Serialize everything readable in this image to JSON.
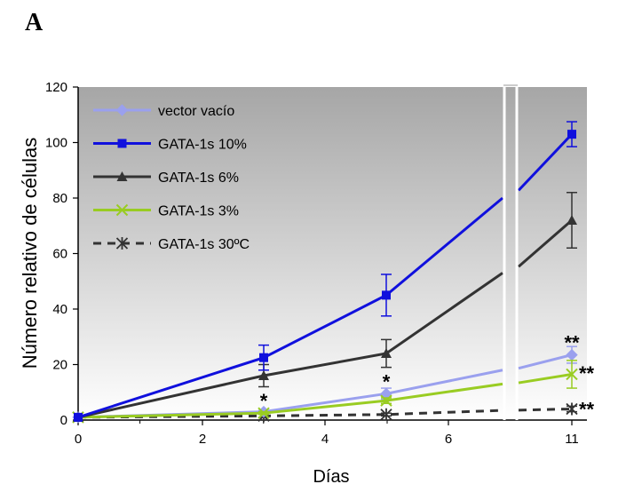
{
  "panel_letter": "A",
  "chart_data": {
    "type": "line",
    "xlabel": "Días",
    "ylabel": "Número relativo de células",
    "ylim": [
      0,
      120
    ],
    "yticks": [
      "0",
      "20",
      "40",
      "60",
      "80",
      "100",
      "120"
    ],
    "xticks": [
      "0",
      "2",
      "4",
      "6",
      "11"
    ],
    "x": [
      0,
      3,
      5,
      11
    ],
    "axis_break": "between 6 and 11",
    "legend_position": "top-left",
    "grid": false,
    "series": [
      {
        "name": "vector vacío",
        "color": "#9aa0ee",
        "marker": "diamond",
        "dash": false,
        "values": [
          1,
          3,
          9.5,
          23.5
        ],
        "errors": [
          0,
          0.5,
          2,
          3
        ],
        "pre_break": 18
      },
      {
        "name": "GATA-1s 10%",
        "color": "#1010dd",
        "marker": "square",
        "dash": false,
        "values": [
          1,
          22.5,
          45,
          103
        ],
        "errors": [
          0,
          4.5,
          7.5,
          4.5
        ],
        "pre_break": 80
      },
      {
        "name": "GATA-1s 6%",
        "color": "#333333",
        "marker": "triangle",
        "dash": false,
        "values": [
          1,
          16,
          24,
          72
        ],
        "errors": [
          0,
          4,
          5,
          10
        ],
        "pre_break": 53
      },
      {
        "name": "GATA-1s 3%",
        "color": "#99cc22",
        "marker": "x",
        "dash": false,
        "values": [
          1,
          2.5,
          7,
          16.5
        ],
        "errors": [
          0,
          0.5,
          1,
          5
        ],
        "pre_break": 13
      },
      {
        "name": "GATA-1s 30ºC",
        "color": "#333333",
        "marker": "asterisk",
        "dash": true,
        "values": [
          1,
          1.5,
          2,
          4
        ],
        "errors": [
          0,
          0.5,
          0.5,
          1
        ],
        "pre_break": 3.5
      }
    ],
    "annotations": [
      {
        "text": "*",
        "x": 3,
        "y": 7
      },
      {
        "text": "*",
        "x": 5,
        "y": 14
      },
      {
        "text": "**",
        "x": 11,
        "y": 28
      },
      {
        "text": "**",
        "x": 11,
        "y": 17
      },
      {
        "text": "**",
        "x": 11,
        "y": 4
      }
    ]
  }
}
